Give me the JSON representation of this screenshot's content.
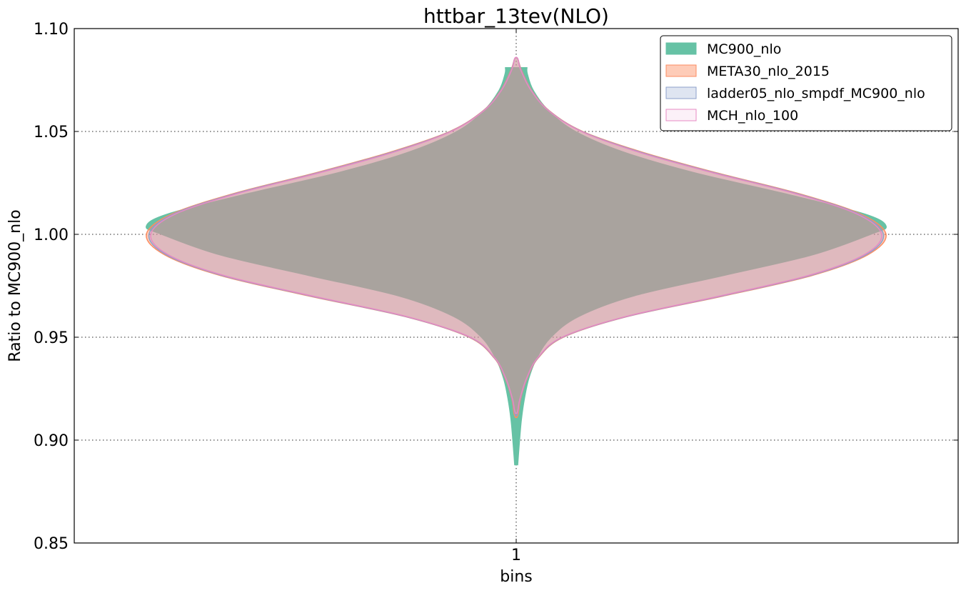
{
  "chart_data": {
    "type": "violin",
    "title": "httbar_13tev(NLO)",
    "xlabel": "bins",
    "ylabel": "Ratio to MC900_nlo",
    "categories": [
      "1"
    ],
    "ylim": [
      0.85,
      1.1
    ],
    "yticks": [
      0.85,
      0.9,
      0.95,
      1.0,
      1.05,
      1.1
    ],
    "ytick_labels": [
      "0.85",
      "0.90",
      "0.95",
      "1.00",
      "1.05",
      "1.10"
    ],
    "grid": true,
    "legend_position": "top-right",
    "series": [
      {
        "name": "MC900_nlo",
        "color": "#66c2a5",
        "fill_opacity": 1.0,
        "profile": [
          [
            0.888,
            0.004
          ],
          [
            0.893,
            0.006
          ],
          [
            0.9,
            0.009
          ],
          [
            0.91,
            0.014
          ],
          [
            0.92,
            0.022
          ],
          [
            0.93,
            0.034
          ],
          [
            0.94,
            0.056
          ],
          [
            0.95,
            0.094
          ],
          [
            0.96,
            0.168
          ],
          [
            0.97,
            0.316
          ],
          [
            0.98,
            0.56
          ],
          [
            0.99,
            0.8
          ],
          [
            1.0,
            0.958
          ],
          [
            1.004,
            1.0
          ],
          [
            1.01,
            0.94
          ],
          [
            1.02,
            0.72
          ],
          [
            1.03,
            0.48
          ],
          [
            1.04,
            0.29
          ],
          [
            1.05,
            0.16
          ],
          [
            1.06,
            0.088
          ],
          [
            1.07,
            0.046
          ],
          [
            1.078,
            0.03
          ],
          [
            1.081,
            0.029
          ]
        ]
      },
      {
        "name": "META30_nlo_2015",
        "color": "#fc8d62",
        "fill_opacity": 0.45,
        "profile": [
          [
            0.911,
            0.002
          ],
          [
            0.913,
            0.006
          ],
          [
            0.92,
            0.012
          ],
          [
            0.93,
            0.03
          ],
          [
            0.94,
            0.06
          ],
          [
            0.95,
            0.128
          ],
          [
            0.96,
            0.3
          ],
          [
            0.97,
            0.56
          ],
          [
            0.98,
            0.8
          ],
          [
            0.99,
            0.95
          ],
          [
            1.0,
            1.0
          ],
          [
            1.01,
            0.93
          ],
          [
            1.02,
            0.76
          ],
          [
            1.03,
            0.54
          ],
          [
            1.04,
            0.34
          ],
          [
            1.05,
            0.18
          ],
          [
            1.06,
            0.09
          ],
          [
            1.07,
            0.042
          ],
          [
            1.08,
            0.014
          ],
          [
            1.085,
            0.005
          ],
          [
            1.086,
            0.001
          ]
        ]
      },
      {
        "name": "ladder05_nlo_smpdf_MC900_nlo",
        "color": "#8da0cb",
        "fill_opacity": 0.28,
        "profile": [
          [
            0.912,
            0.002
          ],
          [
            0.914,
            0.005
          ],
          [
            0.92,
            0.011
          ],
          [
            0.93,
            0.029
          ],
          [
            0.94,
            0.059
          ],
          [
            0.95,
            0.126
          ],
          [
            0.96,
            0.298
          ],
          [
            0.97,
            0.555
          ],
          [
            0.98,
            0.795
          ],
          [
            0.99,
            0.945
          ],
          [
            1.0,
            0.993
          ],
          [
            1.01,
            0.925
          ],
          [
            1.02,
            0.755
          ],
          [
            1.03,
            0.535
          ],
          [
            1.04,
            0.335
          ],
          [
            1.05,
            0.178
          ],
          [
            1.06,
            0.089
          ],
          [
            1.07,
            0.041
          ],
          [
            1.08,
            0.013
          ],
          [
            1.085,
            0.005
          ],
          [
            1.086,
            0.001
          ]
        ]
      },
      {
        "name": "MCH_nlo_100",
        "color": "#e78ac3",
        "fill_opacity": 0.12,
        "profile": [
          [
            0.913,
            0.002
          ],
          [
            0.915,
            0.005
          ],
          [
            0.92,
            0.01
          ],
          [
            0.93,
            0.028
          ],
          [
            0.94,
            0.058
          ],
          [
            0.95,
            0.124
          ],
          [
            0.96,
            0.295
          ],
          [
            0.97,
            0.55
          ],
          [
            0.98,
            0.79
          ],
          [
            0.99,
            0.94
          ],
          [
            1.0,
            0.988
          ],
          [
            1.01,
            0.92
          ],
          [
            1.02,
            0.75
          ],
          [
            1.03,
            0.53
          ],
          [
            1.04,
            0.33
          ],
          [
            1.05,
            0.176
          ],
          [
            1.06,
            0.088
          ],
          [
            1.07,
            0.04
          ],
          [
            1.08,
            0.012
          ],
          [
            1.085,
            0.005
          ],
          [
            1.086,
            0.001
          ]
        ]
      }
    ]
  }
}
